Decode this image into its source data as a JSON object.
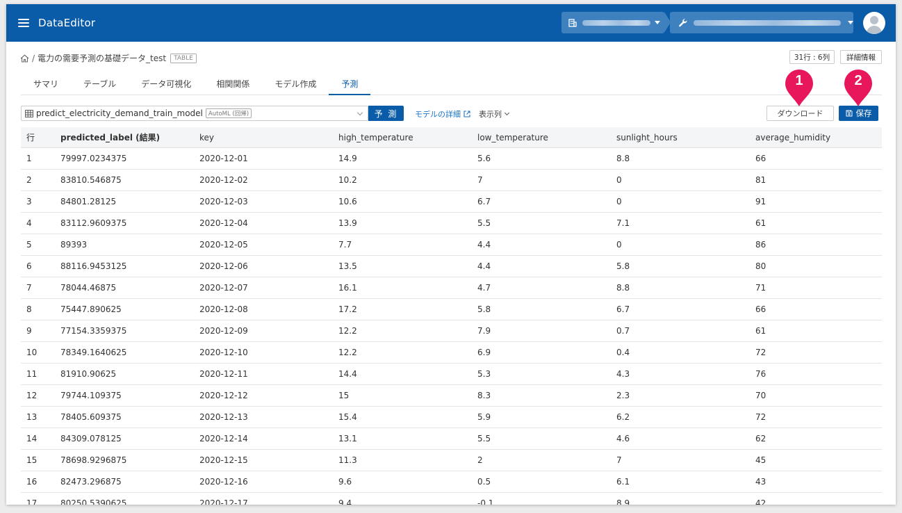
{
  "header": {
    "app_title": "DataEditor",
    "colors": {
      "brand": "#0a5ca8",
      "accent_marker": "#e8165a"
    }
  },
  "breadcrumb": {
    "separator": "/",
    "table_name": "電力の需要予測の基礎データ_test",
    "tag": "TABLE"
  },
  "meta": {
    "rows_cols": "31行 : 6列",
    "detail_label": "詳細情報"
  },
  "tabs": [
    {
      "label": "サマリ"
    },
    {
      "label": "テーブル"
    },
    {
      "label": "データ可視化"
    },
    {
      "label": "相関関係"
    },
    {
      "label": "モデル作成"
    },
    {
      "label": "予測",
      "active": true
    }
  ],
  "toolbar": {
    "model_name": "predict_electricity_demand_train_model",
    "model_tag": "AutoML (回帰)",
    "predict_label": "予 測",
    "model_detail_link": "モデルの詳細",
    "columns_label": "表示列",
    "download_label": "ダウンロード",
    "save_label": "保存"
  },
  "markers": {
    "one": "1",
    "two": "2"
  },
  "table": {
    "columns": [
      "行",
      "predicted_label (結果)",
      "key",
      "high_temperature",
      "low_temperature",
      "sunlight_hours",
      "average_humidity"
    ],
    "rows": [
      [
        "1",
        "79997.0234375",
        "2020-12-01",
        "14.9",
        "5.6",
        "8.8",
        "66"
      ],
      [
        "2",
        "83810.546875",
        "2020-12-02",
        "10.2",
        "7",
        "0",
        "81"
      ],
      [
        "3",
        "84801.28125",
        "2020-12-03",
        "10.6",
        "6.7",
        "0",
        "91"
      ],
      [
        "4",
        "83112.9609375",
        "2020-12-04",
        "13.9",
        "5.5",
        "7.1",
        "61"
      ],
      [
        "5",
        "89393",
        "2020-12-05",
        "7.7",
        "4.4",
        "0",
        "86"
      ],
      [
        "6",
        "88116.9453125",
        "2020-12-06",
        "13.5",
        "4.4",
        "5.8",
        "80"
      ],
      [
        "7",
        "78044.46875",
        "2020-12-07",
        "16.1",
        "4.7",
        "8.8",
        "71"
      ],
      [
        "8",
        "75447.890625",
        "2020-12-08",
        "17.2",
        "5.8",
        "6.7",
        "66"
      ],
      [
        "9",
        "77154.3359375",
        "2020-12-09",
        "12.2",
        "7.9",
        "0.7",
        "61"
      ],
      [
        "10",
        "78349.1640625",
        "2020-12-10",
        "12.2",
        "6.9",
        "0.4",
        "72"
      ],
      [
        "11",
        "81910.90625",
        "2020-12-11",
        "14.4",
        "5.3",
        "4.3",
        "76"
      ],
      [
        "12",
        "79744.109375",
        "2020-12-12",
        "15",
        "8.3",
        "2.3",
        "70"
      ],
      [
        "13",
        "78405.609375",
        "2020-12-13",
        "15.4",
        "5.9",
        "6.2",
        "72"
      ],
      [
        "14",
        "84309.078125",
        "2020-12-14",
        "13.1",
        "5.5",
        "4.6",
        "62"
      ],
      [
        "15",
        "78698.9296875",
        "2020-12-15",
        "11.3",
        "2",
        "7",
        "45"
      ],
      [
        "16",
        "82473.296875",
        "2020-12-16",
        "9.6",
        "0.5",
        "6.1",
        "43"
      ],
      [
        "17",
        "80250.5390625",
        "2020-12-17",
        "9.4",
        "-0.1",
        "8.9",
        "42"
      ]
    ]
  }
}
